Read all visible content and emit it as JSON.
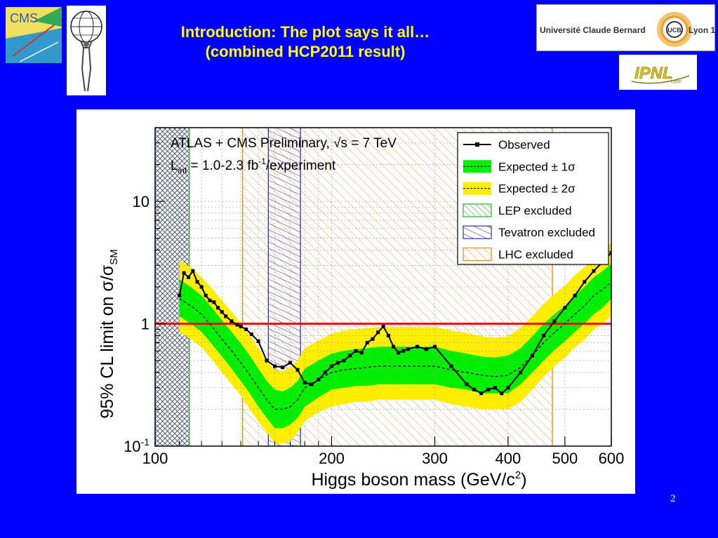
{
  "slide": {
    "title_line1": "Introduction: The plot says it all…",
    "title_line2": "(combined HCP2011 result)",
    "page_number": "2"
  },
  "logos": {
    "cms": "CMS",
    "university": "Université Claude Bernard",
    "university_city": "Lyon 1",
    "ucb_badge": "UCB",
    "ipnl": "IPNL",
    "ipnl_sub": "Lyon"
  },
  "colors": {
    "background": "#0000ff",
    "title": "#ffff00",
    "observed": "#000000",
    "band_1sigma": "#00ee00",
    "band_2sigma": "#ffee00",
    "sm_line": "#ff0000",
    "lep": "#33aa33",
    "tevatron": "#3333aa",
    "lhc": "#ee8800"
  },
  "chart_data": {
    "type": "line",
    "annotation_line1": "ATLAS + CMS Preliminary, √s = 7 TeV",
    "annotation_line2": "L",
    "annotation_line2_sub": "int",
    "annotation_line2_rest": " = 1.0-2.3 fb",
    "annotation_line2_sup": "-1",
    "annotation_line2_tail": "/experiment",
    "xlabel": "Higgs boson mass (GeV/c",
    "xlabel_sup": "2",
    "xlabel_tail": ")",
    "ylabel": "95% CL limit on σ/σ",
    "ylabel_sub": "SM",
    "x_scale": "log",
    "y_scale": "log",
    "xlim": [
      100,
      600
    ],
    "ylim": [
      0.1,
      40
    ],
    "x_tick_labels": [
      "100",
      "200",
      "300",
      "400",
      "500",
      "600"
    ],
    "x_ticks": [
      100,
      200,
      300,
      400,
      500,
      600
    ],
    "y_tick_labels": [
      {
        "base": "10",
        "exp": "-1"
      },
      {
        "base": "1",
        "exp": ""
      },
      {
        "base": "10",
        "exp": ""
      }
    ],
    "y_ticks": [
      0.1,
      1,
      10
    ],
    "grid": true,
    "legend_position": "top-right",
    "legend": [
      {
        "label": "Observed",
        "style": "line-marker"
      },
      {
        "label": "Expected ± 1σ",
        "style": "band1"
      },
      {
        "label": "Expected ± 2σ",
        "style": "band2"
      },
      {
        "label": "LEP excluded",
        "style": "hatch-lep"
      },
      {
        "label": "Tevatron excluded",
        "style": "hatch-tev"
      },
      {
        "label": "LHC excluded",
        "style": "hatch-lhc"
      }
    ],
    "sm_reference": 1,
    "excluded_regions": [
      {
        "name": "LEP excluded",
        "range": [
          100,
          114.4
        ]
      },
      {
        "name": "Tevatron excluded",
        "range": [
          156,
          177
        ]
      },
      {
        "name": "LHC excluded",
        "range": [
          141,
          476
        ]
      }
    ],
    "expected": {
      "x": [
        110,
        115,
        120,
        125,
        130,
        135,
        140,
        145,
        150,
        155,
        160,
        165,
        170,
        175,
        180,
        190,
        200,
        210,
        220,
        230,
        240,
        250,
        260,
        280,
        300,
        320,
        340,
        360,
        380,
        400,
        420,
        440,
        460,
        480,
        500,
        520,
        540,
        560,
        580,
        600
      ],
      "median": [
        1.6,
        1.4,
        1.2,
        0.95,
        0.75,
        0.6,
        0.48,
        0.38,
        0.3,
        0.24,
        0.2,
        0.2,
        0.21,
        0.24,
        0.3,
        0.35,
        0.4,
        0.42,
        0.43,
        0.44,
        0.45,
        0.45,
        0.45,
        0.45,
        0.45,
        0.42,
        0.4,
        0.38,
        0.37,
        0.38,
        0.44,
        0.55,
        0.7,
        0.85,
        1.0,
        1.2,
        1.4,
        1.7,
        1.9,
        2.2
      ],
      "minus1": [
        1.15,
        1.0,
        0.86,
        0.68,
        0.54,
        0.43,
        0.34,
        0.27,
        0.21,
        0.17,
        0.14,
        0.14,
        0.15,
        0.17,
        0.21,
        0.25,
        0.29,
        0.3,
        0.31,
        0.31,
        0.32,
        0.32,
        0.32,
        0.32,
        0.32,
        0.3,
        0.29,
        0.27,
        0.27,
        0.27,
        0.32,
        0.4,
        0.5,
        0.61,
        0.72,
        0.86,
        1.0,
        1.2,
        1.35,
        1.6
      ],
      "plus1": [
        2.3,
        2.0,
        1.7,
        1.35,
        1.07,
        0.86,
        0.69,
        0.55,
        0.43,
        0.34,
        0.29,
        0.28,
        0.3,
        0.34,
        0.43,
        0.5,
        0.57,
        0.6,
        0.62,
        0.63,
        0.65,
        0.65,
        0.65,
        0.65,
        0.65,
        0.6,
        0.57,
        0.54,
        0.53,
        0.55,
        0.63,
        0.79,
        1.0,
        1.2,
        1.4,
        1.7,
        2.0,
        2.4,
        2.7,
        3.1
      ],
      "minus2": [
        0.85,
        0.75,
        0.64,
        0.51,
        0.4,
        0.32,
        0.26,
        0.2,
        0.16,
        0.13,
        0.105,
        0.105,
        0.11,
        0.13,
        0.16,
        0.19,
        0.21,
        0.22,
        0.23,
        0.23,
        0.24,
        0.24,
        0.24,
        0.24,
        0.24,
        0.22,
        0.21,
        0.2,
        0.2,
        0.2,
        0.23,
        0.29,
        0.37,
        0.45,
        0.53,
        0.64,
        0.74,
        0.9,
        1.0,
        1.17
      ],
      "plus2": [
        3.3,
        2.9,
        2.4,
        1.95,
        1.55,
        1.25,
        1.0,
        0.8,
        0.63,
        0.5,
        0.42,
        0.41,
        0.44,
        0.5,
        0.63,
        0.73,
        0.83,
        0.88,
        0.9,
        0.92,
        0.94,
        0.94,
        0.94,
        0.94,
        0.94,
        0.88,
        0.84,
        0.79,
        0.77,
        0.79,
        0.92,
        1.15,
        1.45,
        1.75,
        2.05,
        2.5,
        2.9,
        3.5,
        4.0,
        4.6
      ]
    },
    "observed": {
      "x": [
        110,
        112,
        114,
        116,
        118,
        120,
        122,
        124,
        126,
        128,
        130,
        132,
        135,
        138,
        140,
        143,
        146,
        150,
        155,
        160,
        165,
        170,
        175,
        180,
        185,
        190,
        195,
        200,
        205,
        210,
        215,
        220,
        225,
        230,
        235,
        240,
        245,
        250,
        255,
        260,
        265,
        270,
        280,
        290,
        300,
        320,
        340,
        350,
        360,
        370,
        380,
        390,
        400,
        420,
        440,
        460,
        480,
        500,
        520,
        540,
        560,
        580,
        600
      ],
      "y": [
        1.7,
        2.6,
        2.4,
        2.7,
        2.2,
        2.0,
        1.7,
        1.55,
        1.5,
        1.35,
        1.25,
        1.15,
        1.05,
        0.98,
        0.95,
        0.9,
        0.82,
        0.72,
        0.5,
        0.45,
        0.44,
        0.48,
        0.42,
        0.33,
        0.32,
        0.35,
        0.4,
        0.45,
        0.48,
        0.5,
        0.55,
        0.6,
        0.58,
        0.7,
        0.75,
        0.85,
        0.95,
        0.8,
        0.65,
        0.58,
        0.6,
        0.62,
        0.65,
        0.62,
        0.65,
        0.45,
        0.32,
        0.29,
        0.27,
        0.29,
        0.3,
        0.27,
        0.3,
        0.4,
        0.55,
        0.8,
        1.05,
        1.35,
        1.7,
        2.2,
        2.7,
        3.2,
        3.8
      ]
    }
  }
}
